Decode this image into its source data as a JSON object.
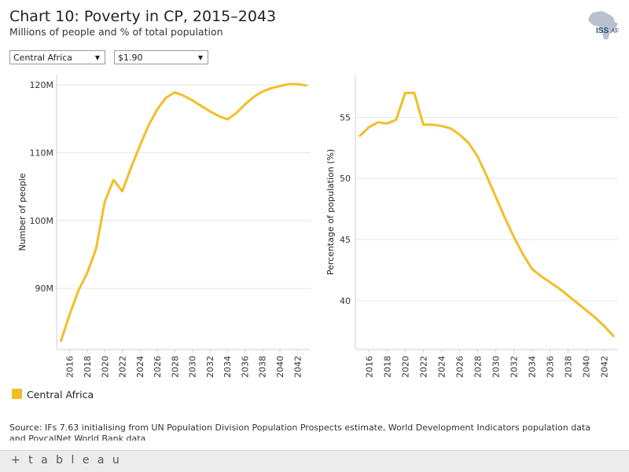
{
  "title": "Chart 10: Poverty in CP, 2015–2043",
  "subtitle": "Millions of people and % of total population",
  "logo_text": "ISS",
  "logo_suffix": "AF",
  "filters": {
    "region": "Central Africa",
    "threshold": "$1.90"
  },
  "legend": {
    "label": "Central Africa",
    "color": "#F2BE28"
  },
  "source": "Source: IFs 7.63 initialising from UN Population Division Population Prospects estimate, World Development Indicators population data and PovcalNet World Bank data",
  "footer_brand": "+ t a b l e a u",
  "colors": {
    "series": "#F2BE28"
  },
  "chart_data": [
    {
      "type": "line",
      "title": "",
      "xlabel": "",
      "ylabel": "Number of people",
      "x": [
        2015,
        2016,
        2017,
        2018,
        2019,
        2020,
        2021,
        2022,
        2023,
        2024,
        2025,
        2026,
        2027,
        2028,
        2029,
        2030,
        2031,
        2032,
        2033,
        2034,
        2035,
        2036,
        2037,
        2038,
        2039,
        2040,
        2041,
        2042,
        2043
      ],
      "series": [
        {
          "name": "Central Africa",
          "values": [
            82.3,
            86.2,
            89.7,
            92.3,
            95.8,
            102.8,
            106.0,
            104.3,
            107.8,
            111.0,
            114.0,
            116.4,
            118.1,
            118.9,
            118.4,
            117.7,
            116.9,
            116.1,
            115.4,
            114.9,
            115.8,
            117.1,
            118.2,
            119.0,
            119.5,
            119.8,
            120.1,
            120.1,
            119.9
          ]
        }
      ],
      "ylim": [
        81,
        121.5
      ],
      "xlim": [
        2014.5,
        2043.5
      ],
      "yticks": [
        90,
        100,
        110,
        120
      ],
      "ytick_labels": [
        "90M",
        "100M",
        "110M",
        "120M"
      ],
      "xticks": [
        2016,
        2018,
        2020,
        2022,
        2024,
        2026,
        2028,
        2030,
        2032,
        2034,
        2036,
        2038,
        2040,
        2042
      ],
      "xtick_labels": [
        "2016",
        "2018",
        "2020",
        "2022",
        "2024",
        "2026",
        "2028",
        "2030",
        "2032",
        "2034",
        "2036",
        "2038",
        "2040",
        "2042"
      ],
      "grid": true
    },
    {
      "type": "line",
      "title": "",
      "xlabel": "",
      "ylabel": "Percentage of population (%)",
      "x": [
        2015,
        2016,
        2017,
        2018,
        2019,
        2020,
        2021,
        2022,
        2023,
        2024,
        2025,
        2026,
        2027,
        2028,
        2029,
        2030,
        2031,
        2032,
        2033,
        2034,
        2035,
        2036,
        2037,
        2038,
        2039,
        2040,
        2041,
        2042,
        2043
      ],
      "series": [
        {
          "name": "Central Africa",
          "values": [
            53.5,
            54.2,
            54.6,
            54.5,
            54.8,
            57.0,
            57.0,
            54.4,
            54.4,
            54.3,
            54.1,
            53.6,
            52.9,
            51.8,
            50.2,
            48.5,
            46.8,
            45.2,
            43.8,
            42.6,
            42.0,
            41.5,
            41.0,
            40.4,
            39.8,
            39.2,
            38.6,
            37.9,
            37.1
          ]
        }
      ],
      "ylim": [
        36.0,
        58.5
      ],
      "xlim": [
        2014.5,
        2043.5
      ],
      "yticks": [
        40,
        45,
        50,
        55
      ],
      "ytick_labels": [
        "40",
        "45",
        "50",
        "55"
      ],
      "xticks": [
        2016,
        2018,
        2020,
        2022,
        2024,
        2026,
        2028,
        2030,
        2032,
        2034,
        2036,
        2038,
        2040,
        2042
      ],
      "xtick_labels": [
        "2016",
        "2018",
        "2020",
        "2022",
        "2024",
        "2026",
        "2028",
        "2030",
        "2032",
        "2034",
        "2036",
        "2038",
        "2040",
        "2042"
      ],
      "grid": true
    }
  ]
}
